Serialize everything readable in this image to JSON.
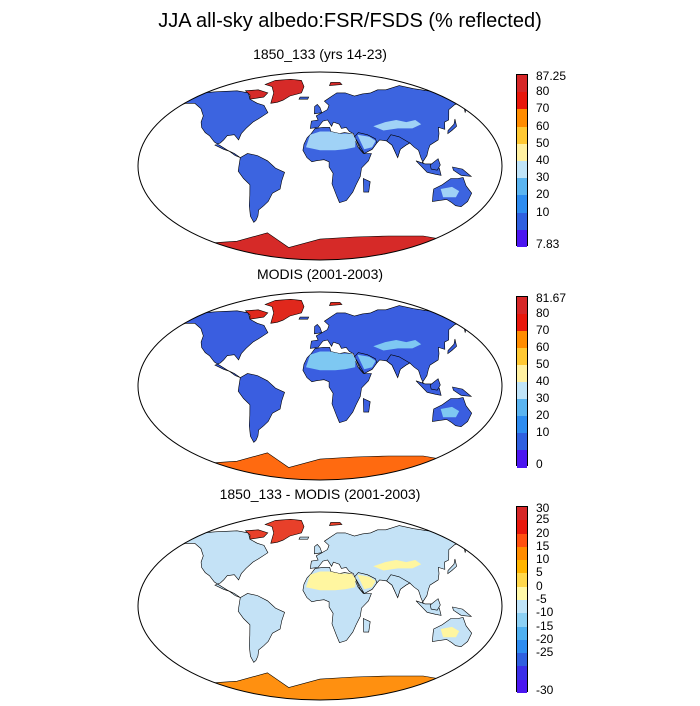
{
  "title": "JJA all-sky albedo:FSR/FSDS (% reflected)",
  "panels": [
    {
      "title": "1850_133 (yrs 14-23)",
      "colorbar": {
        "labels": [
          "87.25",
          "80",
          "70",
          "60",
          "50",
          "40",
          "30",
          "20",
          "10",
          "7.83"
        ],
        "colors": [
          "#d62728",
          "#e8170c",
          "#ff8c00",
          "#ffc832",
          "#fff0a0",
          "#c0e4f8",
          "#5ab4f0",
          "#2d8cf0",
          "#2f5fe0",
          "#4b16f0"
        ]
      },
      "palette": {
        "land": "#3c64e0",
        "desert": "#a0d2f6",
        "ice": "#d62a28",
        "greenland": "#d62a28"
      }
    },
    {
      "title": "MODIS (2001-2003)",
      "colorbar": {
        "labels": [
          "81.67",
          "80",
          "70",
          "60",
          "50",
          "40",
          "30",
          "20",
          "10",
          "0"
        ],
        "colors": [
          "#d62728",
          "#e8170c",
          "#ff8c00",
          "#ffc832",
          "#fff0a0",
          "#c0e4f8",
          "#5ab4f0",
          "#2d8cf0",
          "#2f5fe0",
          "#4b16f0"
        ]
      },
      "palette": {
        "land": "#3a5ee0",
        "desert": "#7ec8f2",
        "ice": "#ff6a10",
        "greenland": "#e0281c"
      }
    },
    {
      "title": "1850_133 - MODIS (2001-2003)",
      "colorbar": {
        "labels": [
          "30",
          "25",
          "20",
          "15",
          "10",
          "5",
          "0",
          "-5",
          "-10",
          "-15",
          "-20",
          "-25",
          "-30"
        ],
        "colors": [
          "#d62728",
          "#e8170c",
          "#ff5010",
          "#ff8c00",
          "#ffb400",
          "#ffd84c",
          "#fff8a8",
          "#c0e4f8",
          "#8cd0f4",
          "#50b0f0",
          "#2d8cf0",
          "#2f5fe0",
          "#3a2fe8",
          "#4b16f0"
        ]
      },
      "palette": {
        "land": "#c4e2f6",
        "desert": "#fff6a0",
        "ice": "#ff9010",
        "greenland": "#e8402a"
      }
    }
  ]
}
